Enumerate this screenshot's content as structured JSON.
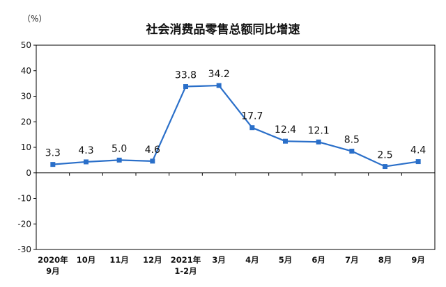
{
  "chart_data": {
    "type": "line",
    "title": "社会消费品零售总额同比增速",
    "unit_label": "（%）",
    "xlabel": "",
    "ylabel": "",
    "ylim": [
      -30,
      50
    ],
    "yticks": [
      -30,
      -20,
      -10,
      0,
      10,
      20,
      30,
      40,
      50
    ],
    "categories": [
      "2020年9月",
      "10月",
      "11月",
      "12月",
      "2021年1-2月",
      "3月",
      "4月",
      "5月",
      "6月",
      "7月",
      "8月",
      "9月"
    ],
    "category_lines": [
      [
        "2020年",
        "9月"
      ],
      [
        "10月"
      ],
      [
        "11月"
      ],
      [
        "12月"
      ],
      [
        "2021年",
        "1-2月"
      ],
      [
        "3月"
      ],
      [
        "4月"
      ],
      [
        "5月"
      ],
      [
        "6月"
      ],
      [
        "7月"
      ],
      [
        "8月"
      ],
      [
        "9月"
      ]
    ],
    "series": [
      {
        "values": [
          3.3,
          4.3,
          5.0,
          4.6,
          33.8,
          34.2,
          17.7,
          12.4,
          12.1,
          8.5,
          2.5,
          4.4
        ],
        "labels": [
          "3.3",
          "4.3",
          "5.0",
          "4.6",
          "33.8",
          "34.2",
          "17.7",
          "12.4",
          "12.1",
          "8.5",
          "2.5",
          "4.4"
        ],
        "color": "#2a6fc9"
      }
    ],
    "grid": false,
    "legend": "none"
  }
}
